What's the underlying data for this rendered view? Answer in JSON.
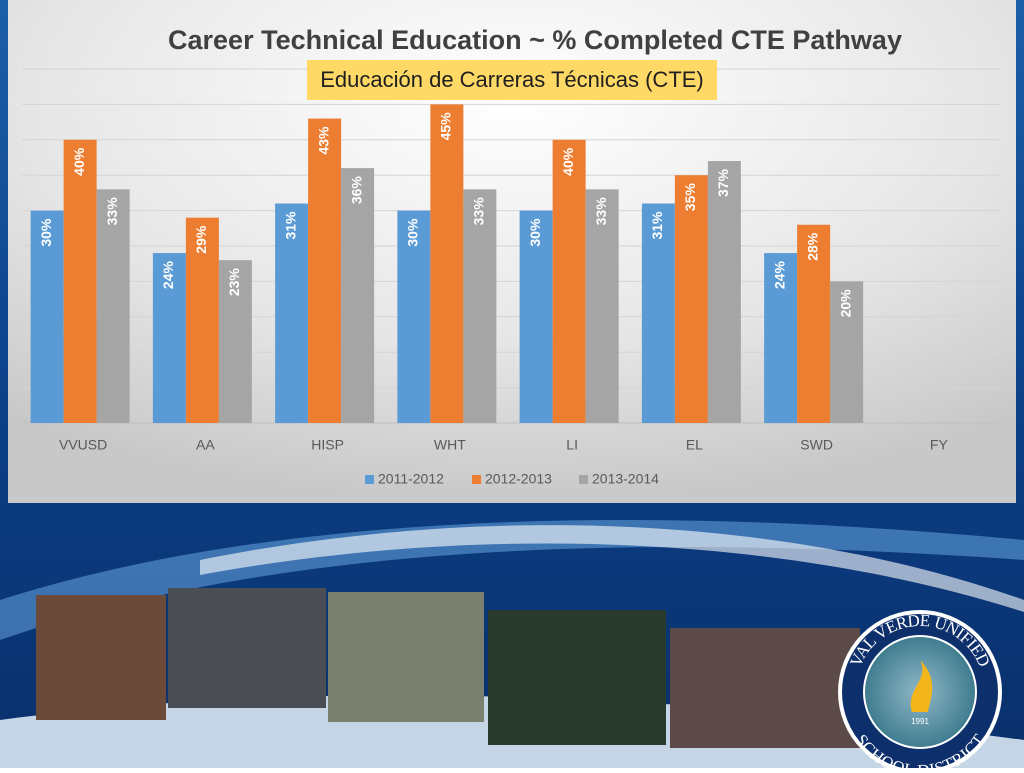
{
  "chart_data": {
    "type": "bar",
    "title": "Career Technical Education ~ % Completed CTE Pathway",
    "subtitle": "Educación de Carreras Técnicas (CTE)",
    "categories": [
      "VVUSD",
      "AA",
      "HISP",
      "WHT",
      "LI",
      "EL",
      "SWD",
      "FY"
    ],
    "series": [
      {
        "name": "2011-2012",
        "color": "#5b9bd5",
        "values": [
          30,
          24,
          31,
          30,
          30,
          31,
          24,
          null
        ],
        "value_labels": [
          "30%",
          "24%",
          "31%",
          "30%",
          "30%",
          "31%",
          "24%",
          null
        ]
      },
      {
        "name": "2012-2013",
        "color": "#ed7d31",
        "values": [
          40,
          29,
          43,
          45,
          40,
          35,
          28,
          null
        ],
        "value_labels": [
          "40%",
          "29%",
          "43%",
          "45%",
          "40%",
          "35%",
          "28%",
          null
        ]
      },
      {
        "name": "2013-2014",
        "color": "#a5a5a5",
        "values": [
          33,
          23,
          36,
          33,
          33,
          37,
          20,
          null
        ],
        "value_labels": [
          "33%",
          "23%",
          "36%",
          "33%",
          "33%",
          "37%",
          "20%",
          null
        ]
      }
    ],
    "ylim": [
      0,
      50
    ],
    "yticks": [
      0,
      5,
      10,
      15,
      20,
      25,
      30,
      35,
      40,
      45,
      50
    ],
    "grid": true,
    "legend": "bottom"
  },
  "logo": {
    "top_text": "VAL VERDE UNIFIED",
    "bottom_text": "SCHOOL DISTRICT",
    "year": "1991"
  }
}
